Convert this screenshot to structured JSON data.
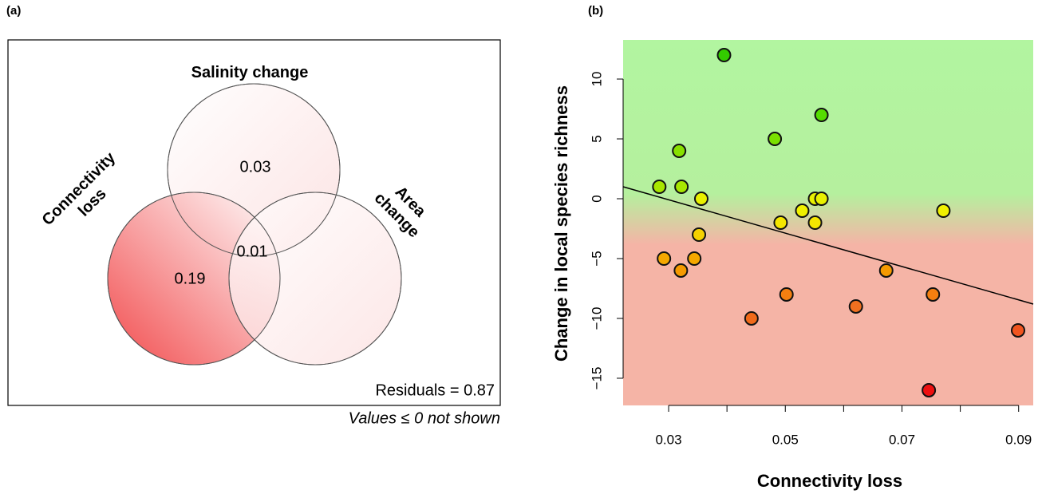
{
  "chart_data": [
    {
      "type": "venn",
      "panel_label": "(a)",
      "sets": [
        {
          "label": [
            "Salinity change"
          ],
          "value": 0.03
        },
        {
          "label": [
            "Connectivity",
            "loss"
          ],
          "value": 0.19
        },
        {
          "label": [
            "Area",
            "change"
          ],
          "value": null
        }
      ],
      "intersection_value": 0.01,
      "annotations": [
        "Residuals = 0.87",
        "Values ≤ 0 not shown"
      ],
      "color": "#f0383a"
    },
    {
      "type": "scatter",
      "panel_label": "(b)",
      "x_label": "Connectivity loss",
      "y_label": "Change in local species richness",
      "x": [
        0.0284,
        0.0292,
        0.0318,
        0.0322,
        0.0321,
        0.0344,
        0.0352,
        0.0356,
        0.0395,
        0.0442,
        0.0482,
        0.0492,
        0.0502,
        0.0529,
        0.0551,
        0.0551,
        0.0562,
        0.0562,
        0.0621,
        0.0673,
        0.0753,
        0.0746,
        0.0771,
        0.0899
      ],
      "y": [
        1,
        -5,
        4,
        1,
        -6,
        -5,
        -3,
        0,
        12,
        -10,
        5,
        -2,
        -8,
        -1,
        0,
        -2,
        0,
        7,
        -9,
        -6,
        -8,
        -16,
        -1,
        -11
      ],
      "point_colors": [
        "#a8e600",
        "#f5a800",
        "#88e000",
        "#a8e600",
        "#f59a00",
        "#f5a800",
        "#f5d200",
        "#e8f000",
        "#33cc00",
        "#f06a1a",
        "#7ae000",
        "#f5e600",
        "#f57f10",
        "#f0f000",
        "#e8f000",
        "#f5e600",
        "#e8f000",
        "#55dd00",
        "#f07020",
        "#f59a00",
        "#f57f10",
        "#ee1010",
        "#f0f000",
        "#f05520"
      ],
      "trend_line": {
        "x": [
          0.0222,
          0.0925
        ],
        "y": [
          1.0,
          -8.8
        ]
      },
      "xlim": [
        0.0222,
        0.0925
      ],
      "ylim": [
        -17.27,
        13.27
      ],
      "xticks": [
        0.03,
        0.05,
        0.07,
        0.09
      ],
      "xticks_minor": [
        0.04,
        0.06,
        0.08
      ],
      "yticks": [
        {
          "value": -15,
          "label": "−15"
        },
        {
          "value": -10,
          "label": "−10"
        },
        {
          "value": -5,
          "label": "−5"
        },
        0,
        5,
        10
      ]
    }
  ]
}
